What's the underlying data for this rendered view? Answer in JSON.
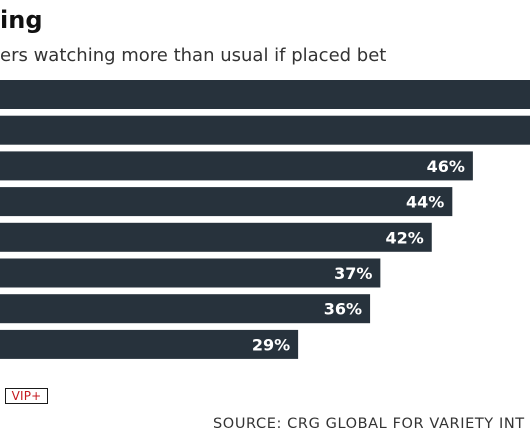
{
  "header": {
    "title": "ing",
    "subtitle": "ers watching more than usual if placed bet"
  },
  "chart_data": {
    "type": "bar",
    "orientation": "horizontal",
    "title": "ing",
    "subtitle": "ers watching more than usual if placed bet",
    "categories": [
      "",
      "",
      "",
      "",
      "",
      "",
      "",
      ""
    ],
    "values": [
      null,
      null,
      46,
      44,
      42,
      37,
      36,
      29
    ],
    "value_labels": [
      "",
      "",
      "46%",
      "44%",
      "42%",
      "37%",
      "36%",
      "29%"
    ],
    "unit": "%",
    "bar_color": "#27323c",
    "label_color": "#ffffff",
    "grid": false,
    "legend": "none"
  },
  "footer": {
    "badge": "VIP+",
    "badge_color": "#c4171d",
    "source": "SOURCE: CRG GLOBAL FOR VARIETY INT"
  }
}
